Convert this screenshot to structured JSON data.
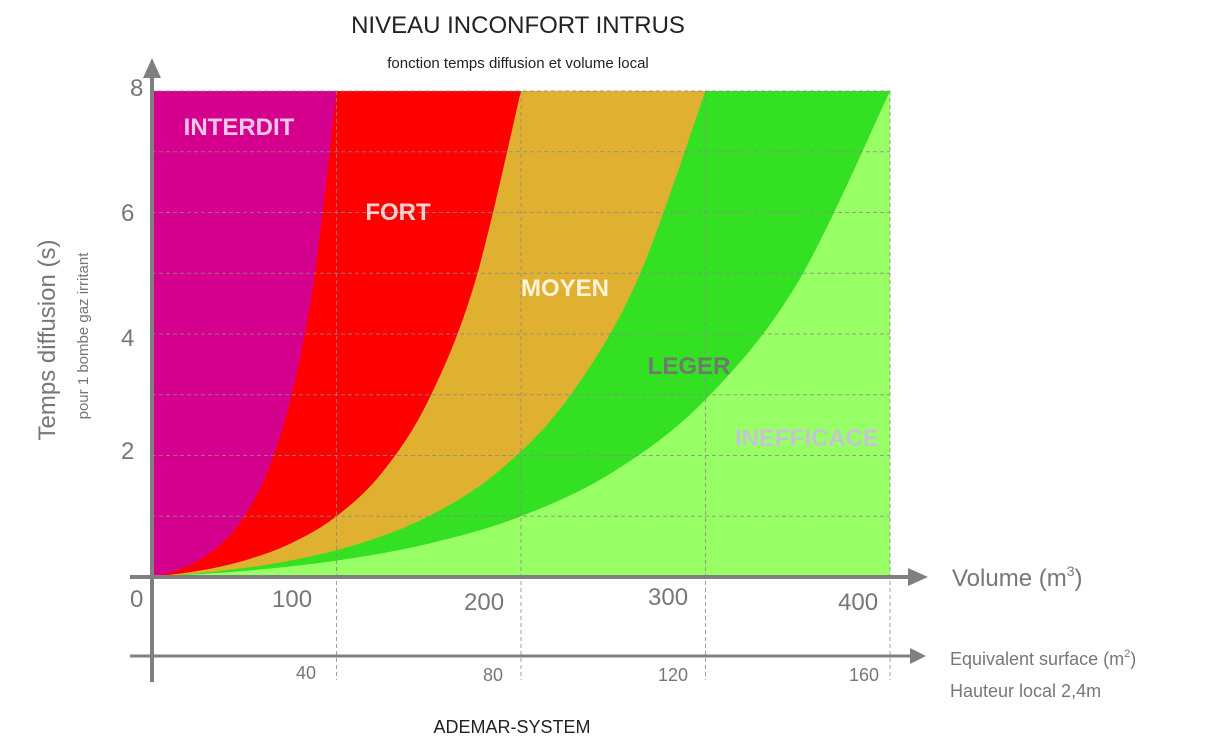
{
  "chart_data": {
    "type": "area",
    "title": "NIVEAU INCONFORT INTRUS",
    "subtitle": "fonction temps diffusion et volume local",
    "ylabel": "Temps diffusion (s)",
    "ylabel_sub": "pour 1 bombe gaz irritant",
    "xlabel": "Volume (m",
    "xlabel_sup": "3",
    "xlabel_end": ")",
    "x2label": "Equivalent surface (m",
    "x2label_sup": "2",
    "x2label_end": ")",
    "x2note": "Hauteur local 2,4m",
    "xlim": [
      0,
      400
    ],
    "ylim": [
      0,
      8
    ],
    "grid": true,
    "x_ticks": [
      "0",
      "100",
      "200",
      "300",
      "400"
    ],
    "y_ticks": [
      "2",
      "4",
      "6",
      "8"
    ],
    "x2_ticks": [
      "40",
      "80",
      "120",
      "160"
    ],
    "zones": [
      {
        "name": "INTERDIT",
        "color": "#d6008f",
        "text_color": "#f2c6e6"
      },
      {
        "name": "FORT",
        "color": "#ff0000",
        "text_color": "#f7d2d2"
      },
      {
        "name": "MOYEN",
        "color": "#e0b030",
        "text_color": "#fff3dc"
      },
      {
        "name": "LEGER",
        "color": "#33e022",
        "text_color": "#6f7a6f"
      },
      {
        "name": "INEFFICACE",
        "color": "#99ff66",
        "text_color": "#c4c4d4"
      }
    ],
    "boundaries": [
      {
        "between": [
          "INTERDIT",
          "FORT"
        ],
        "x": [
          0,
          12.5,
          25,
          37.5,
          50,
          62.5,
          75,
          87.5,
          100
        ],
        "y": [
          0,
          0.1,
          0.27,
          0.55,
          1,
          1.73,
          2.92,
          4.85,
          8
        ]
      },
      {
        "between": [
          "FORT",
          "MOYEN"
        ],
        "x": [
          0,
          25,
          50,
          75,
          100,
          125,
          150,
          175,
          200
        ],
        "y": [
          0,
          0.1,
          0.27,
          0.55,
          1,
          1.73,
          2.92,
          4.85,
          8
        ]
      },
      {
        "between": [
          "MOYEN",
          "LEGER"
        ],
        "x": [
          0,
          37.5,
          75,
          112.5,
          150,
          187.5,
          225,
          262.5,
          300
        ],
        "y": [
          0,
          0.1,
          0.27,
          0.55,
          1,
          1.73,
          2.92,
          4.85,
          8
        ]
      },
      {
        "between": [
          "LEGER",
          "INEFFICACE"
        ],
        "x": [
          0,
          50,
          100,
          150,
          200,
          250,
          300,
          350,
          400
        ],
        "y": [
          0,
          0.1,
          0.27,
          0.55,
          1,
          1.73,
          2.92,
          4.85,
          8
        ]
      }
    ]
  },
  "footer": "ADEMAR-SYSTEM"
}
